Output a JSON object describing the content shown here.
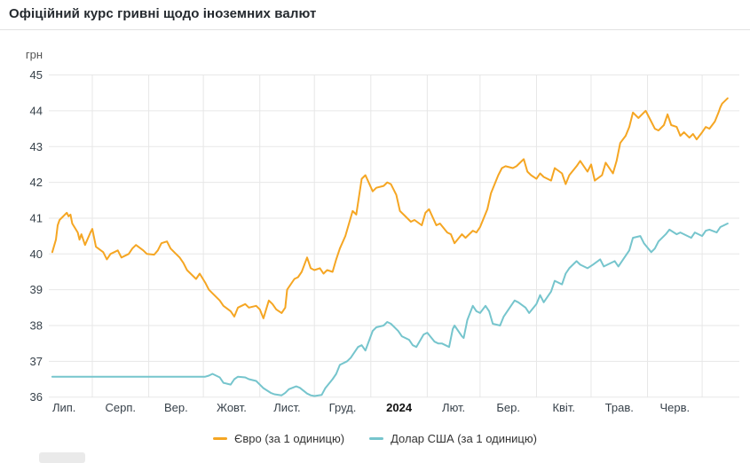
{
  "title": "Офіційний курс гривні щодо іноземних валют",
  "chart_data": {
    "type": "line",
    "title": "Офіційний курс гривні щодо іноземних валют",
    "ylabel": "грн",
    "ylim": [
      36,
      45
    ],
    "y_ticks": [
      36,
      37,
      38,
      39,
      40,
      41,
      42,
      43,
      44,
      45
    ],
    "grid": true,
    "legend_position": "bottom",
    "x_months": [
      {
        "label": "Лип.",
        "month": "2023-07",
        "bold": false
      },
      {
        "label": "Серп.",
        "month": "2023-08",
        "bold": false
      },
      {
        "label": "Вер.",
        "month": "2023-09",
        "bold": false
      },
      {
        "label": "Жовт.",
        "month": "2023-10",
        "bold": false
      },
      {
        "label": "Лист.",
        "month": "2023-11",
        "bold": false
      },
      {
        "label": "Груд.",
        "month": "2023-12",
        "bold": false
      },
      {
        "label": "2024",
        "month": "2024-01",
        "bold": true
      },
      {
        "label": "Лют.",
        "month": "2024-02",
        "bold": false
      },
      {
        "label": "Бер.",
        "month": "2024-03",
        "bold": false
      },
      {
        "label": "Квіт.",
        "month": "2024-04",
        "bold": false
      },
      {
        "label": "Трав.",
        "month": "2024-05",
        "bold": false
      },
      {
        "label": "Черв.",
        "month": "2024-06",
        "bold": false
      }
    ],
    "series": [
      {
        "name": "Євро (за 1 одиницю)",
        "color": "#f5a623",
        "points": [
          [
            "2023-07-10",
            40.05
          ],
          [
            "2023-07-12",
            40.4
          ],
          [
            "2023-07-13",
            40.8
          ],
          [
            "2023-07-14",
            40.95
          ],
          [
            "2023-07-17",
            41.1
          ],
          [
            "2023-07-18",
            41.15
          ],
          [
            "2023-07-19",
            41.05
          ],
          [
            "2023-07-20",
            41.1
          ],
          [
            "2023-07-21",
            40.85
          ],
          [
            "2023-07-24",
            40.6
          ],
          [
            "2023-07-25",
            40.4
          ],
          [
            "2023-07-26",
            40.55
          ],
          [
            "2023-07-28",
            40.25
          ],
          [
            "2023-07-31",
            40.6
          ],
          [
            "2023-08-01",
            40.7
          ],
          [
            "2023-08-03",
            40.2
          ],
          [
            "2023-08-07",
            40.05
          ],
          [
            "2023-08-09",
            39.85
          ],
          [
            "2023-08-11",
            40.0
          ],
          [
            "2023-08-15",
            40.1
          ],
          [
            "2023-08-17",
            39.9
          ],
          [
            "2023-08-21",
            40.0
          ],
          [
            "2023-08-23",
            40.15
          ],
          [
            "2023-08-25",
            40.25
          ],
          [
            "2023-08-29",
            40.1
          ],
          [
            "2023-08-31",
            40.0
          ],
          [
            "2023-09-04",
            39.98
          ],
          [
            "2023-09-06",
            40.1
          ],
          [
            "2023-09-08",
            40.3
          ],
          [
            "2023-09-11",
            40.35
          ],
          [
            "2023-09-13",
            40.15
          ],
          [
            "2023-09-15",
            40.05
          ],
          [
            "2023-09-18",
            39.9
          ],
          [
            "2023-09-20",
            39.75
          ],
          [
            "2023-09-22",
            39.55
          ],
          [
            "2023-09-25",
            39.4
          ],
          [
            "2023-09-27",
            39.3
          ],
          [
            "2023-09-29",
            39.45
          ],
          [
            "2023-10-02",
            39.2
          ],
          [
            "2023-10-04",
            39.0
          ],
          [
            "2023-10-06",
            38.9
          ],
          [
            "2023-10-10",
            38.7
          ],
          [
            "2023-10-12",
            38.55
          ],
          [
            "2023-10-16",
            38.4
          ],
          [
            "2023-10-18",
            38.25
          ],
          [
            "2023-10-20",
            38.5
          ],
          [
            "2023-10-24",
            38.6
          ],
          [
            "2023-10-26",
            38.5
          ],
          [
            "2023-10-30",
            38.55
          ],
          [
            "2023-11-01",
            38.45
          ],
          [
            "2023-11-03",
            38.2
          ],
          [
            "2023-11-06",
            38.7
          ],
          [
            "2023-11-08",
            38.6
          ],
          [
            "2023-11-10",
            38.45
          ],
          [
            "2023-11-13",
            38.35
          ],
          [
            "2023-11-15",
            38.5
          ],
          [
            "2023-11-16",
            39.0
          ],
          [
            "2023-11-20",
            39.3
          ],
          [
            "2023-11-22",
            39.35
          ],
          [
            "2023-11-24",
            39.5
          ],
          [
            "2023-11-27",
            39.9
          ],
          [
            "2023-11-29",
            39.6
          ],
          [
            "2023-12-01",
            39.55
          ],
          [
            "2023-12-04",
            39.6
          ],
          [
            "2023-12-06",
            39.45
          ],
          [
            "2023-12-08",
            39.55
          ],
          [
            "2023-12-11",
            39.5
          ],
          [
            "2023-12-13",
            39.85
          ],
          [
            "2023-12-15",
            40.15
          ],
          [
            "2023-12-18",
            40.5
          ],
          [
            "2023-12-20",
            40.85
          ],
          [
            "2023-12-22",
            41.2
          ],
          [
            "2023-12-24",
            41.1
          ],
          [
            "2023-12-27",
            42.1
          ],
          [
            "2023-12-29",
            42.2
          ],
          [
            "2024-01-02",
            41.75
          ],
          [
            "2024-01-04",
            41.85
          ],
          [
            "2024-01-08",
            41.9
          ],
          [
            "2024-01-10",
            42.0
          ],
          [
            "2024-01-12",
            41.95
          ],
          [
            "2024-01-15",
            41.65
          ],
          [
            "2024-01-17",
            41.2
          ],
          [
            "2024-01-19",
            41.1
          ],
          [
            "2024-01-23",
            40.9
          ],
          [
            "2024-01-25",
            40.95
          ],
          [
            "2024-01-29",
            40.8
          ],
          [
            "2024-01-31",
            41.15
          ],
          [
            "2024-02-02",
            41.25
          ],
          [
            "2024-02-06",
            40.8
          ],
          [
            "2024-02-08",
            40.85
          ],
          [
            "2024-02-12",
            40.6
          ],
          [
            "2024-02-14",
            40.55
          ],
          [
            "2024-02-16",
            40.3
          ],
          [
            "2024-02-20",
            40.55
          ],
          [
            "2024-02-22",
            40.45
          ],
          [
            "2024-02-26",
            40.65
          ],
          [
            "2024-02-28",
            40.6
          ],
          [
            "2024-03-01",
            40.75
          ],
          [
            "2024-03-05",
            41.25
          ],
          [
            "2024-03-07",
            41.7
          ],
          [
            "2024-03-11",
            42.2
          ],
          [
            "2024-03-13",
            42.4
          ],
          [
            "2024-03-15",
            42.45
          ],
          [
            "2024-03-19",
            42.4
          ],
          [
            "2024-03-21",
            42.45
          ],
          [
            "2024-03-25",
            42.65
          ],
          [
            "2024-03-27",
            42.3
          ],
          [
            "2024-03-29",
            42.2
          ],
          [
            "2024-04-01",
            42.1
          ],
          [
            "2024-04-03",
            42.25
          ],
          [
            "2024-04-05",
            42.15
          ],
          [
            "2024-04-09",
            42.05
          ],
          [
            "2024-04-11",
            42.4
          ],
          [
            "2024-04-15",
            42.25
          ],
          [
            "2024-04-17",
            41.95
          ],
          [
            "2024-04-19",
            42.2
          ],
          [
            "2024-04-23",
            42.45
          ],
          [
            "2024-04-25",
            42.6
          ],
          [
            "2024-04-29",
            42.3
          ],
          [
            "2024-05-01",
            42.5
          ],
          [
            "2024-05-03",
            42.05
          ],
          [
            "2024-05-07",
            42.2
          ],
          [
            "2024-05-09",
            42.55
          ],
          [
            "2024-05-13",
            42.25
          ],
          [
            "2024-05-15",
            42.6
          ],
          [
            "2024-05-17",
            43.1
          ],
          [
            "2024-05-20",
            43.3
          ],
          [
            "2024-05-22",
            43.55
          ],
          [
            "2024-05-24",
            43.95
          ],
          [
            "2024-05-27",
            43.8
          ],
          [
            "2024-05-29",
            43.9
          ],
          [
            "2024-05-31",
            44.0
          ],
          [
            "2024-06-03",
            43.7
          ],
          [
            "2024-06-05",
            43.5
          ],
          [
            "2024-06-07",
            43.45
          ],
          [
            "2024-06-10",
            43.6
          ],
          [
            "2024-06-12",
            43.9
          ],
          [
            "2024-06-14",
            43.6
          ],
          [
            "2024-06-17",
            43.55
          ],
          [
            "2024-06-19",
            43.3
          ],
          [
            "2024-06-21",
            43.4
          ],
          [
            "2024-06-24",
            43.25
          ],
          [
            "2024-06-26",
            43.35
          ],
          [
            "2024-06-28",
            43.2
          ],
          [
            "2024-07-01",
            43.4
          ],
          [
            "2024-07-03",
            43.55
          ],
          [
            "2024-07-05",
            43.5
          ],
          [
            "2024-07-08",
            43.7
          ],
          [
            "2024-07-10",
            43.95
          ],
          [
            "2024-07-11",
            44.1
          ],
          [
            "2024-07-12",
            44.2
          ],
          [
            "2024-07-15",
            44.35
          ]
        ]
      },
      {
        "name": "Долар США (за 1 одиницю)",
        "color": "#76c5cd",
        "points": [
          [
            "2023-07-10",
            36.57
          ],
          [
            "2023-10-02",
            36.57
          ],
          [
            "2023-10-04",
            36.6
          ],
          [
            "2023-10-06",
            36.65
          ],
          [
            "2023-10-10",
            36.55
          ],
          [
            "2023-10-12",
            36.4
          ],
          [
            "2023-10-16",
            36.35
          ],
          [
            "2023-10-18",
            36.5
          ],
          [
            "2023-10-20",
            36.57
          ],
          [
            "2023-10-24",
            36.55
          ],
          [
            "2023-10-26",
            36.5
          ],
          [
            "2023-10-30",
            36.45
          ],
          [
            "2023-11-01",
            36.35
          ],
          [
            "2023-11-03",
            36.25
          ],
          [
            "2023-11-07",
            36.12
          ],
          [
            "2023-11-09",
            36.08
          ],
          [
            "2023-11-13",
            36.05
          ],
          [
            "2023-11-15",
            36.12
          ],
          [
            "2023-11-17",
            36.22
          ],
          [
            "2023-11-21",
            36.3
          ],
          [
            "2023-11-23",
            36.26
          ],
          [
            "2023-11-27",
            36.1
          ],
          [
            "2023-11-29",
            36.05
          ],
          [
            "2023-12-01",
            36.03
          ],
          [
            "2023-12-05",
            36.06
          ],
          [
            "2023-12-07",
            36.25
          ],
          [
            "2023-12-11",
            36.5
          ],
          [
            "2023-12-13",
            36.65
          ],
          [
            "2023-12-15",
            36.9
          ],
          [
            "2023-12-19",
            37.0
          ],
          [
            "2023-12-21",
            37.1
          ],
          [
            "2023-12-25",
            37.4
          ],
          [
            "2023-12-27",
            37.45
          ],
          [
            "2023-12-29",
            37.3
          ],
          [
            "2024-01-02",
            37.85
          ],
          [
            "2024-01-04",
            37.95
          ],
          [
            "2024-01-08",
            38.0
          ],
          [
            "2024-01-10",
            38.1
          ],
          [
            "2024-01-12",
            38.05
          ],
          [
            "2024-01-16",
            37.85
          ],
          [
            "2024-01-18",
            37.7
          ],
          [
            "2024-01-22",
            37.6
          ],
          [
            "2024-01-24",
            37.45
          ],
          [
            "2024-01-26",
            37.4
          ],
          [
            "2024-01-30",
            37.75
          ],
          [
            "2024-02-01",
            37.8
          ],
          [
            "2024-02-05",
            37.55
          ],
          [
            "2024-02-07",
            37.5
          ],
          [
            "2024-02-09",
            37.5
          ],
          [
            "2024-02-13",
            37.4
          ],
          [
            "2024-02-15",
            37.9
          ],
          [
            "2024-02-16",
            38.0
          ],
          [
            "2024-02-20",
            37.7
          ],
          [
            "2024-02-21",
            37.65
          ],
          [
            "2024-02-23",
            38.15
          ],
          [
            "2024-02-26",
            38.55
          ],
          [
            "2024-02-28",
            38.4
          ],
          [
            "2024-03-01",
            38.35
          ],
          [
            "2024-03-04",
            38.55
          ],
          [
            "2024-03-06",
            38.4
          ],
          [
            "2024-03-08",
            38.05
          ],
          [
            "2024-03-12",
            38.0
          ],
          [
            "2024-03-14",
            38.25
          ],
          [
            "2024-03-18",
            38.55
          ],
          [
            "2024-03-20",
            38.7
          ],
          [
            "2024-03-22",
            38.65
          ],
          [
            "2024-03-26",
            38.5
          ],
          [
            "2024-03-28",
            38.35
          ],
          [
            "2024-04-01",
            38.6
          ],
          [
            "2024-04-03",
            38.85
          ],
          [
            "2024-04-05",
            38.65
          ],
          [
            "2024-04-09",
            38.95
          ],
          [
            "2024-04-11",
            39.25
          ],
          [
            "2024-04-15",
            39.15
          ],
          [
            "2024-04-17",
            39.45
          ],
          [
            "2024-04-19",
            39.6
          ],
          [
            "2024-04-23",
            39.8
          ],
          [
            "2024-04-25",
            39.7
          ],
          [
            "2024-04-29",
            39.6
          ],
          [
            "2024-05-02",
            39.7
          ],
          [
            "2024-05-06",
            39.85
          ],
          [
            "2024-05-08",
            39.65
          ],
          [
            "2024-05-10",
            39.7
          ],
          [
            "2024-05-14",
            39.8
          ],
          [
            "2024-05-16",
            39.65
          ],
          [
            "2024-05-20",
            39.95
          ],
          [
            "2024-05-22",
            40.1
          ],
          [
            "2024-05-24",
            40.45
          ],
          [
            "2024-05-28",
            40.5
          ],
          [
            "2024-05-30",
            40.3
          ],
          [
            "2024-06-03",
            40.05
          ],
          [
            "2024-06-05",
            40.15
          ],
          [
            "2024-06-07",
            40.35
          ],
          [
            "2024-06-11",
            40.55
          ],
          [
            "2024-06-13",
            40.68
          ],
          [
            "2024-06-17",
            40.55
          ],
          [
            "2024-06-19",
            40.6
          ],
          [
            "2024-06-21",
            40.55
          ],
          [
            "2024-06-25",
            40.45
          ],
          [
            "2024-06-27",
            40.6
          ],
          [
            "2024-07-01",
            40.5
          ],
          [
            "2024-07-03",
            40.65
          ],
          [
            "2024-07-05",
            40.68
          ],
          [
            "2024-07-09",
            40.6
          ],
          [
            "2024-07-11",
            40.75
          ],
          [
            "2024-07-15",
            40.85
          ]
        ]
      }
    ]
  }
}
